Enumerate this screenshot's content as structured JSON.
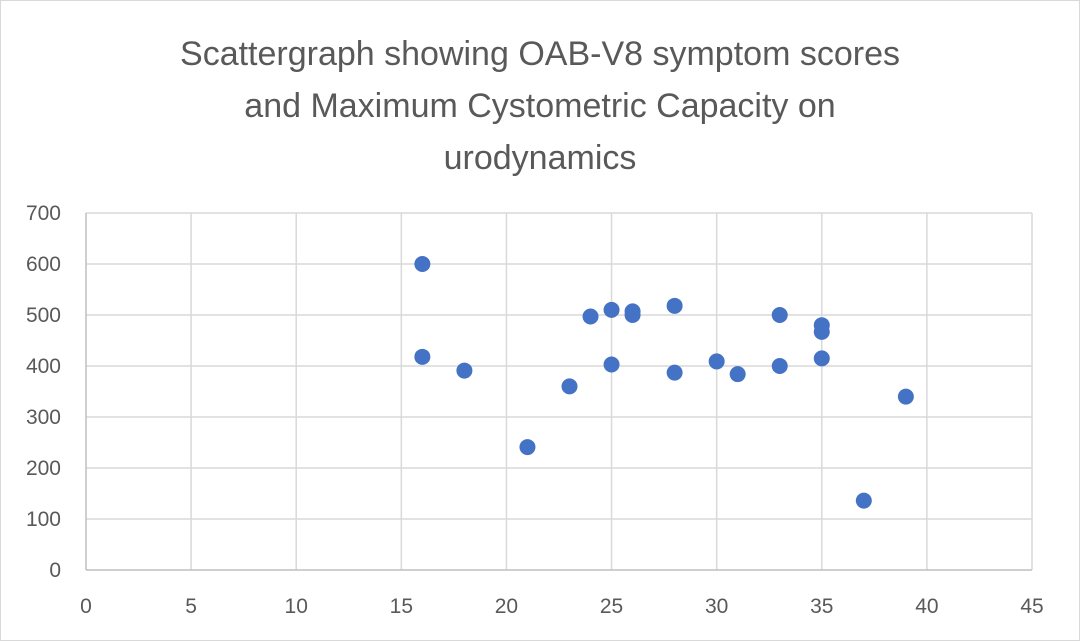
{
  "chart_data": {
    "type": "scatter",
    "title_lines": [
      "Scattergraph showing OAB-V8 symptom scores",
      "and Maximum Cystometric Capacity on",
      "urodynamics"
    ],
    "xlabel": "",
    "ylabel": "",
    "xlim": [
      0,
      45
    ],
    "ylim": [
      0,
      700
    ],
    "x_ticks": [
      0,
      5,
      10,
      15,
      20,
      25,
      30,
      35,
      40,
      45
    ],
    "y_ticks": [
      0,
      100,
      200,
      300,
      400,
      500,
      600,
      700
    ],
    "grid": true,
    "legend": "none",
    "marker_color": "#4472c4",
    "points": [
      {
        "x": 16,
        "y": 600
      },
      {
        "x": 16,
        "y": 418
      },
      {
        "x": 18,
        "y": 391
      },
      {
        "x": 21,
        "y": 241
      },
      {
        "x": 23,
        "y": 360
      },
      {
        "x": 24,
        "y": 497
      },
      {
        "x": 25,
        "y": 510
      },
      {
        "x": 25,
        "y": 403
      },
      {
        "x": 26,
        "y": 507
      },
      {
        "x": 26,
        "y": 500
      },
      {
        "x": 28,
        "y": 518
      },
      {
        "x": 28,
        "y": 387
      },
      {
        "x": 30,
        "y": 409
      },
      {
        "x": 31,
        "y": 384
      },
      {
        "x": 33,
        "y": 500
      },
      {
        "x": 33,
        "y": 400
      },
      {
        "x": 35,
        "y": 480
      },
      {
        "x": 35,
        "y": 467
      },
      {
        "x": 35,
        "y": 415
      },
      {
        "x": 37,
        "y": 136
      },
      {
        "x": 39,
        "y": 340
      }
    ]
  }
}
